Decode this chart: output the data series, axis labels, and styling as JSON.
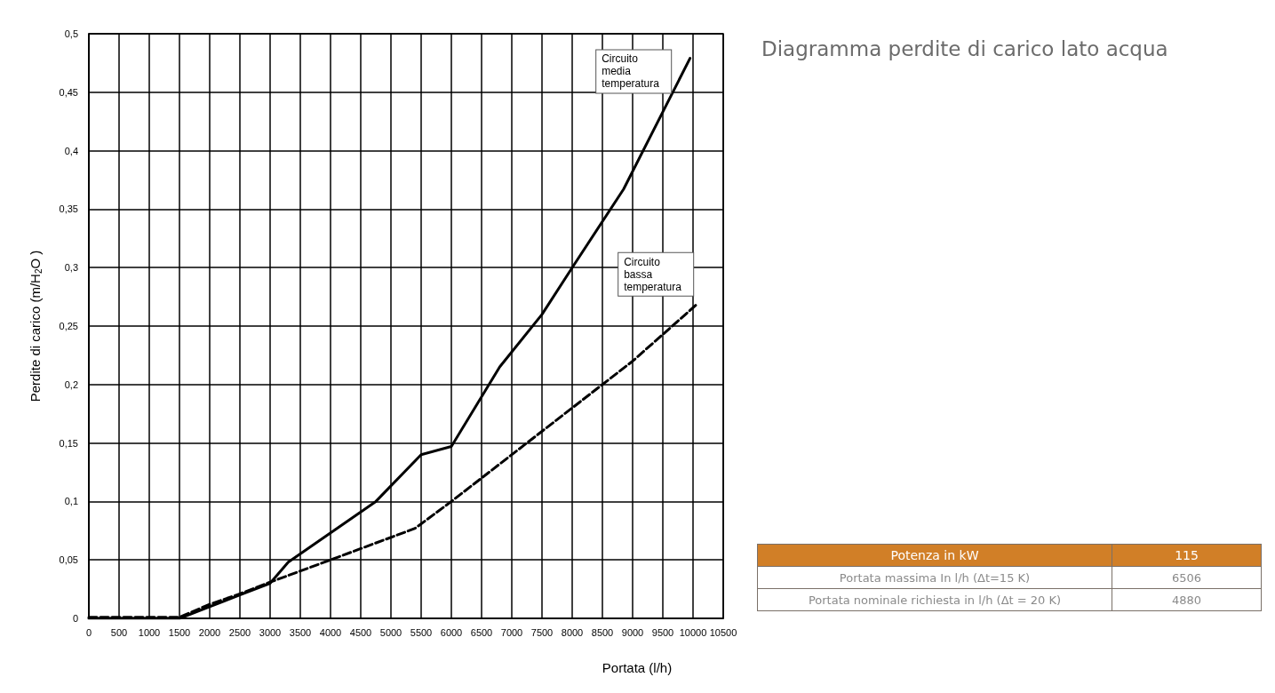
{
  "chart_data": {
    "type": "line",
    "title": "Diagramma perdite di carico lato acqua",
    "xlabel": "Portata (l/h)",
    "ylabel": "Perdite di carico (m/H$_{2}$O )",
    "xlim": [
      0,
      10500
    ],
    "xticks": [
      0,
      500,
      1000,
      1500,
      2000,
      2500,
      3000,
      3500,
      4000,
      4500,
      5000,
      5500,
      6000,
      6500,
      7000,
      7500,
      8000,
      8500,
      9000,
      9500,
      10000,
      10500
    ],
    "ylim": [
      0,
      0.5
    ],
    "yticks": [
      0,
      {
        "value": 0.05,
        "label": "0,05"
      },
      {
        "value": 0.1,
        "label": "0,1"
      },
      {
        "value": 0.15,
        "label": "0,15"
      },
      {
        "value": 0.2,
        "label": "0,2"
      },
      {
        "value": 0.25,
        "label": "0,25"
      },
      {
        "value": 0.3,
        "label": "0,3"
      },
      {
        "value": 0.35,
        "label": "0,35"
      },
      {
        "value": 0.4,
        "label": "0,4"
      },
      {
        "value": 0.45,
        "label": "0,45"
      },
      {
        "value": 0.5,
        "label": "0,5"
      }
    ],
    "grid": true,
    "legend": false,
    "marker": "none",
    "series": [
      {
        "name": "Circuito media temperatura",
        "color": "#000000",
        "line_style": "solid",
        "x": [
          0,
          1500,
          2000,
          2500,
          3000,
          3300,
          4750,
          5500,
          6000,
          6800,
          7500,
          8000,
          8850,
          9950
        ],
        "values": [
          0,
          0,
          0.01,
          0.02,
          0.03,
          0.048,
          0.1,
          0.14,
          0.147,
          0.215,
          0.26,
          0.3,
          0.367,
          0.479
        ]
      },
      {
        "name": "Circuito bassa temperatura",
        "color": "#000000",
        "line_style": "dashed",
        "x": [
          0,
          1500,
          2000,
          2500,
          3000,
          4000,
          5400,
          6000,
          7500,
          8500,
          9000,
          10050
        ],
        "values": [
          0.001,
          0.001,
          0.012,
          0.021,
          0.031,
          0.05,
          0.077,
          0.1,
          0.16,
          0.2,
          0.22,
          0.268
        ]
      }
    ],
    "annotations": [
      "Potenza in kW",
      "115",
      "Portata massima In l/h (Δt=15 K)",
      "6506",
      "Portata nominale richiesta in l/h (Δt = 20 K)",
      "4880"
    ]
  }
}
